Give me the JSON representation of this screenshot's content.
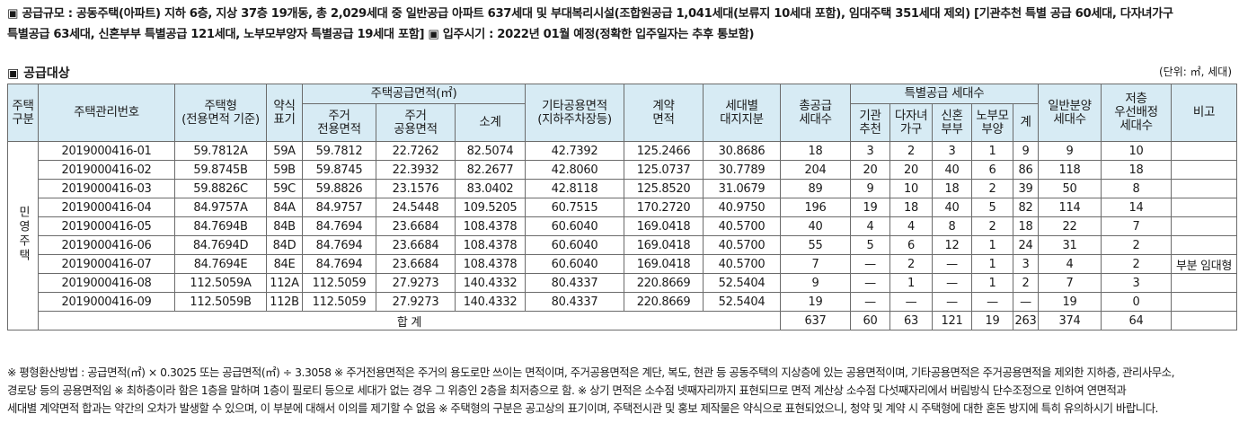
{
  "intro": {
    "line1": "▣ 공급규모 : 공동주택(아파트) 지하 6층, 지상 37층 19개동, 총 2,029세대 중 일반공급 아파트 637세대 및 부대복리시설(조합원공급 1,041세대(보류지 10세대 포함), 임대주택 351세대 제외) [기관추천 특별  공급 60세대, 다자녀가구",
    "line2": "특별공급 63세대, 신혼부부 특별공급 121세대, 노부모부양자 특별공급 19세대 포함]  ▣ 입주시기 : 2022년 01월 예정(정확한 입주일자는 추후 통보함)"
  },
  "section_title": "▣ 공급대상",
  "unit_note": "(단위: ㎡, 세대)",
  "table": {
    "headers": {
      "housing_type": "주택\n구분",
      "mgmt_no": "주택관리번호",
      "unit_type": "주택형\n(전용면적 기준)",
      "short_label": "약식\n표기",
      "supply_area_group": "주택공급면적(㎡)",
      "exclusive_area": "주거\n전용면적",
      "common_area": "주거\n공용면적",
      "subtotal": "소계",
      "other_common": "기타공용면적\n(지하주차장등)",
      "contract_area": "계약\n면적",
      "land_share": "세대별\n대지지분",
      "total_supply": "총공급\n세대수",
      "special_group": "특별공급 세대수",
      "institution": "기관\n추천",
      "multi_child": "다자녀\n가구",
      "newlywed": "신혼\n부부",
      "elderly": "노부모\n부양",
      "special_total": "계",
      "general": "일반분양\n세대수",
      "low_floor": "저층\n우선배정\n세대수",
      "remarks": "비고"
    },
    "housing_type_value": "민영주택",
    "rows": [
      [
        "2019000416-01",
        "59.7812A",
        "59A",
        "59.7812",
        "22.7262",
        "82.5074",
        "42.7392",
        "125.2466",
        "30.8686",
        "18",
        "3",
        "2",
        "3",
        "1",
        "9",
        "9",
        "10",
        ""
      ],
      [
        "2019000416-02",
        "59.8745B",
        "59B",
        "59.8745",
        "22.3932",
        "82.2677",
        "42.8060",
        "125.0737",
        "30.7789",
        "204",
        "20",
        "20",
        "40",
        "6",
        "86",
        "118",
        "18",
        ""
      ],
      [
        "2019000416-03",
        "59.8826C",
        "59C",
        "59.8826",
        "23.1576",
        "83.0402",
        "42.8118",
        "125.8520",
        "31.0679",
        "89",
        "9",
        "10",
        "18",
        "2",
        "39",
        "50",
        "8",
        ""
      ],
      [
        "2019000416-04",
        "84.9757A",
        "84A",
        "84.9757",
        "24.5448",
        "109.5205",
        "60.7515",
        "170.2720",
        "40.9750",
        "196",
        "19",
        "18",
        "40",
        "5",
        "82",
        "114",
        "14",
        ""
      ],
      [
        "2019000416-05",
        "84.7694B",
        "84B",
        "84.7694",
        "23.6684",
        "108.4378",
        "60.6040",
        "169.0418",
        "40.5700",
        "40",
        "4",
        "4",
        "8",
        "2",
        "18",
        "22",
        "7",
        ""
      ],
      [
        "2019000416-06",
        "84.7694D",
        "84D",
        "84.7694",
        "23.6684",
        "108.4378",
        "60.6040",
        "169.0418",
        "40.5700",
        "55",
        "5",
        "6",
        "12",
        "1",
        "24",
        "31",
        "2",
        ""
      ],
      [
        "2019000416-07",
        "84.7694E",
        "84E",
        "84.7694",
        "23.6684",
        "108.4378",
        "60.6040",
        "169.0418",
        "40.5700",
        "7",
        "—",
        "2",
        "—",
        "1",
        "3",
        "4",
        "2",
        "부분 임대형"
      ],
      [
        "2019000416-08",
        "112.5059A",
        "112A",
        "112.5059",
        "27.9273",
        "140.4332",
        "80.4337",
        "220.8669",
        "52.5404",
        "9",
        "—",
        "1",
        "—",
        "1",
        "2",
        "7",
        "3",
        ""
      ],
      [
        "2019000416-09",
        "112.5059B",
        "112B",
        "112.5059",
        "27.9273",
        "140.4332",
        "80.4337",
        "220.8669",
        "52.5404",
        "19",
        "—",
        "—",
        "—",
        "—",
        "—",
        "19",
        "0",
        ""
      ]
    ],
    "total": {
      "label": "합 계",
      "values": [
        "637",
        "60",
        "63",
        "121",
        "19",
        "263",
        "374",
        "64",
        ""
      ]
    }
  },
  "notes": {
    "line1": "※ 평형환산방법 : 공급면적(㎡) × 0.3025 또는 공급면적(㎡) ÷ 3.3058  ※ 주거전용면적은 주거의 용도로만 쓰이는 면적이며, 주거공용면적은 계단, 복도, 현관 등 공동주택의 지상층에 있는 공용면적이며, 기타공용면적은 주거공용면적을 제외한 지하층, 관리사무소,",
    "line2": "경로당 등의 공용면적임  ※ 최하층이라 함은 1층을 말하며 1층이 필로티 등으로 세대가 없는 경우 그 위층인 2층을 최저층으로 함.  ※ 상기 면적은 소수점 넷째자리까지 표현되므로 면적 계산상 소수점 다섯째자리에서 버림방식 단수조정으로 인하여 연면적과",
    "line3": "세대별 계약면적 합과는 약간의 오차가 발생할 수 있으며, 이 부분에 대해서 이의를 제기할 수 없음  ※ 주택형의 구분은 공고상의 표기이며, 주택전시관 및 홍보 제작물은 약식으로 표현되었으니, 청약 및 계약 시 주택형에 대한 혼돈 방지에 특히 유의하시기 바랍니다."
  }
}
